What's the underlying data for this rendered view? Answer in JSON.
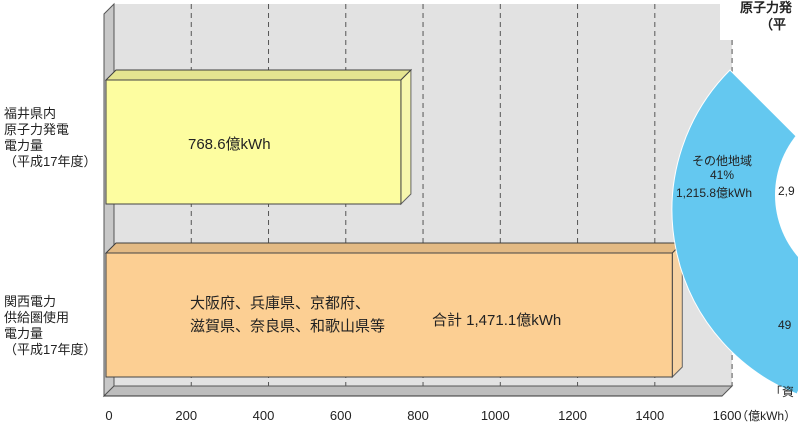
{
  "chart_data": {
    "type": "bar",
    "orientation": "horizontal",
    "categories": [
      "福井県内\n原子力発電\n電力量\n（平成17年度）",
      "関西電力\n供給圏使用\n電力量\n（平成17年度）"
    ],
    "values": [
      768.6,
      1471.1
    ],
    "bar_colors": [
      "#fdfda0",
      "#fccf93"
    ],
    "bar_labels": [
      "768.6億kWh",
      "合計 1,471.1億kWh"
    ],
    "bar_sublabel": "大阪府、兵庫県、京都府、\n滋賀県、奈良県、和歌山県等",
    "x_ticks": [
      "0",
      "200",
      "400",
      "600",
      "800",
      "1000",
      "1200",
      "1400",
      "1600"
    ],
    "xlim": [
      0,
      1600
    ],
    "x_unit": "（億kWh）",
    "grid": true,
    "grid_style": "dashed vertical"
  },
  "pie": {
    "title_lines": [
      "原子力発",
      "（平"
    ],
    "slices": [
      {
        "label": "その他地域",
        "percent": "41%",
        "value": "1,215.8億kWh",
        "color": "#64c8f0"
      },
      {
        "value_fragment": "2,9",
        "color": "#64c8f0"
      },
      {
        "label_fragment": "49",
        "color": "#f09ac8"
      }
    ]
  },
  "source_fragment": "「資"
}
